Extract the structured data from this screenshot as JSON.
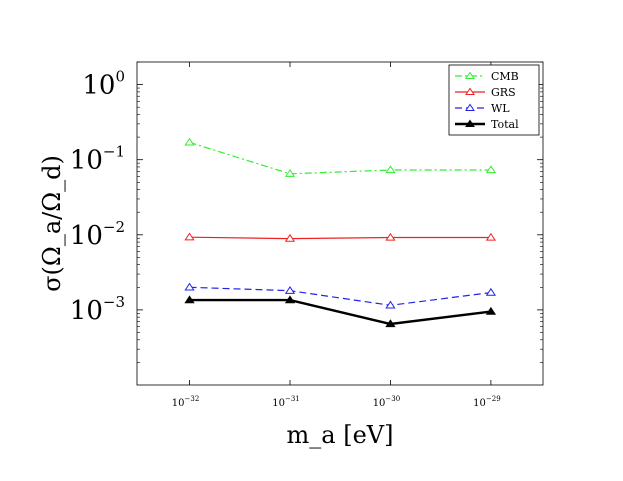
{
  "chart_data": {
    "type": "line",
    "xscale": "log",
    "yscale": "log",
    "xlabel": "m_a [eV]",
    "ylabel": "σ(Ω_a/Ω_d)",
    "xlim": [
      3e-33,
      3.3e-29
    ],
    "ylim": [
      0.0001,
      2.0
    ],
    "x_ticks": [
      {
        "value": 1e-32,
        "base": "10",
        "exp": "−32"
      },
      {
        "value": 1e-31,
        "base": "10",
        "exp": "−31"
      },
      {
        "value": 1e-30,
        "base": "10",
        "exp": "−30"
      },
      {
        "value": 1e-29,
        "base": "10",
        "exp": "−29"
      }
    ],
    "y_ticks": [
      {
        "value": 0.001,
        "base": "10",
        "exp": "−3"
      },
      {
        "value": 0.01,
        "base": "10",
        "exp": "−2"
      },
      {
        "value": 0.1,
        "base": "10",
        "exp": "−1"
      },
      {
        "value": 1,
        "base": "10",
        "exp": "0"
      }
    ],
    "x": [
      1e-32,
      1e-31,
      1e-30,
      1e-29
    ],
    "legend_position": "top-right",
    "series": [
      {
        "name": "CMB",
        "color": "#33ee33",
        "dash": "dashdot",
        "marker": "open-triangle",
        "width": 1.2,
        "values": [
          0.17,
          0.065,
          0.073,
          0.073
        ]
      },
      {
        "name": "GRS",
        "color": "#ee2222",
        "dash": "solid",
        "marker": "open-triangle",
        "width": 1.2,
        "values": [
          0.0093,
          0.0089,
          0.0092,
          0.0092
        ]
      },
      {
        "name": "WL",
        "color": "#2222ee",
        "dash": "dashed",
        "marker": "open-triangle",
        "width": 1.2,
        "values": [
          0.002,
          0.0018,
          0.00115,
          0.0017
        ]
      },
      {
        "name": "Total",
        "color": "#000000",
        "dash": "solid",
        "marker": "filled-triangle",
        "width": 2.4,
        "values": [
          0.00135,
          0.00135,
          0.00065,
          0.00095
        ]
      }
    ]
  }
}
